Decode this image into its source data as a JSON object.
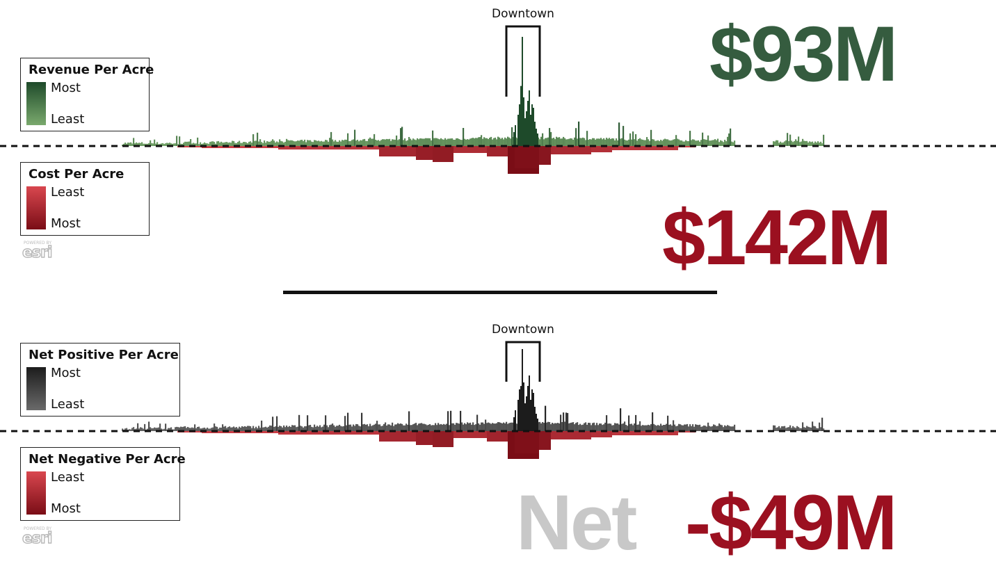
{
  "chart_data": [
    {
      "type": "bar",
      "title": "",
      "annotation": "Downtown",
      "series": [
        {
          "name": "Revenue Per Acre",
          "direction": "up",
          "color_most": "#1e4a2a",
          "color_least": "#7aa96d"
        },
        {
          "name": "Cost Per Acre",
          "direction": "down",
          "color_most": "#7a0d16",
          "color_least": "#d9474f"
        }
      ],
      "baseline": "dashed",
      "legends": [
        {
          "title": "Revenue Per Acre",
          "top_label": "Most",
          "bottom_label": "Least"
        },
        {
          "title": "Cost Per Acre",
          "top_label": "Least",
          "bottom_label": "Most"
        }
      ],
      "totals": {
        "revenue": "$93M",
        "cost": "$142M"
      }
    },
    {
      "type": "bar",
      "title": "",
      "annotation": "Downtown",
      "series": [
        {
          "name": "Net Positive Per Acre",
          "direction": "up",
          "color_most": "#1c1c1c",
          "color_least": "#6a6a6a"
        },
        {
          "name": "Net Negative Per Acre",
          "direction": "down",
          "color_most": "#7a0d16",
          "color_least": "#d9474f"
        }
      ],
      "baseline": "dashed",
      "legends": [
        {
          "title": "Net Positive Per Acre",
          "top_label": "Most",
          "bottom_label": "Least"
        },
        {
          "title": "Net Negative Per Acre",
          "top_label": "Least",
          "bottom_label": "Most"
        }
      ],
      "totals": {
        "net_label": "Net",
        "net_value": "-$49M"
      }
    }
  ],
  "colors": {
    "revenue_total": "#355c3f",
    "cost_total": "#9b1020",
    "net_label": "#c8c8c8",
    "net_value": "#9b1020"
  },
  "branding": {
    "powered_by": "POWERED BY",
    "logo": "esri"
  }
}
